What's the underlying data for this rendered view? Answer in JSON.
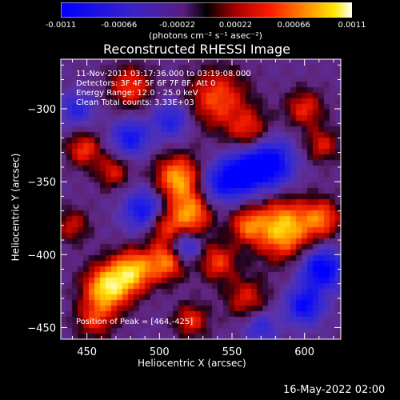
{
  "colorbar": {
    "ticks": [
      "-0.0011",
      "-0.00066",
      "-0.00022",
      "0.00022",
      "0.00066",
      "0.0011"
    ],
    "unit": "(photons cm⁻² s⁻¹ asec⁻²)"
  },
  "title": "Reconstructed RHESSI Image",
  "info": {
    "line1": "11-Nov-2011 03:17:36.000 to 03:19:08.000",
    "line2": "Detectors: 3F 4F 5F 6F 7F 8F, Att 0",
    "line3": "Energy Range: 12.0 - 25.0 keV",
    "line4": "Clean     Total counts: 3.33E+03"
  },
  "peak_label": "Position of Peak = [464,-425]",
  "footer_timestamp": "16-May-2022 02:00",
  "chart_data": {
    "type": "heatmap",
    "title": "Reconstructed RHESSI Image",
    "xlabel": "Heliocentric X (arcsec)",
    "ylabel": "Heliocentric Y (arcsec)",
    "xlim": [
      432,
      625
    ],
    "ylim": [
      -458,
      -266
    ],
    "xticks": [
      450,
      500,
      550,
      600
    ],
    "yticks": [
      -300,
      -350,
      -400,
      -450
    ],
    "colorbar_range": [
      -0.0011,
      0.0011
    ],
    "colormap": "blue-purple-red-yellow-white",
    "peak": [
      464,
      -425
    ],
    "blobs": [
      {
        "x": 464,
        "y": -423,
        "amp": 1.0,
        "r": 11
      },
      {
        "x": 482,
        "y": -411,
        "amp": 0.85,
        "r": 10
      },
      {
        "x": 505,
        "y": -405,
        "amp": 0.7,
        "r": 9
      },
      {
        "x": 513,
        "y": -348,
        "amp": 0.85,
        "r": 11
      },
      {
        "x": 522,
        "y": -372,
        "amp": 0.75,
        "r": 10
      },
      {
        "x": 502,
        "y": -380,
        "amp": 0.55,
        "r": 9
      },
      {
        "x": 585,
        "y": -382,
        "amp": 0.95,
        "r": 14
      },
      {
        "x": 612,
        "y": -375,
        "amp": 0.6,
        "r": 9
      },
      {
        "x": 560,
        "y": -380,
        "amp": 0.55,
        "r": 8
      },
      {
        "x": 540,
        "y": -405,
        "amp": 0.55,
        "r": 9
      },
      {
        "x": 560,
        "y": -430,
        "amp": 0.45,
        "r": 10
      },
      {
        "x": 522,
        "y": -445,
        "amp": 0.5,
        "r": 8
      },
      {
        "x": 540,
        "y": -293,
        "amp": 0.6,
        "r": 14
      },
      {
        "x": 562,
        "y": -315,
        "amp": 0.5,
        "r": 10
      },
      {
        "x": 600,
        "y": -300,
        "amp": 0.5,
        "r": 9
      },
      {
        "x": 480,
        "y": -285,
        "amp": 0.55,
        "r": 10
      },
      {
        "x": 448,
        "y": -328,
        "amp": 0.55,
        "r": 8
      },
      {
        "x": 468,
        "y": -343,
        "amp": 0.45,
        "r": 8
      },
      {
        "x": 612,
        "y": -325,
        "amp": 0.45,
        "r": 8
      },
      {
        "x": 440,
        "y": -380,
        "amp": 0.4,
        "r": 8
      },
      {
        "x": 455,
        "y": -445,
        "amp": 0.45,
        "r": 9
      },
      {
        "x": 575,
        "y": -338,
        "amp": -0.95,
        "r": 12
      },
      {
        "x": 555,
        "y": -345,
        "amp": -0.75,
        "r": 10
      },
      {
        "x": 612,
        "y": -410,
        "amp": -0.9,
        "r": 10
      },
      {
        "x": 600,
        "y": -435,
        "amp": -0.75,
        "r": 9
      },
      {
        "x": 490,
        "y": -370,
        "amp": -0.75,
        "r": 10
      },
      {
        "x": 480,
        "y": -320,
        "amp": -0.65,
        "r": 9
      },
      {
        "x": 518,
        "y": -395,
        "amp": -0.55,
        "r": 7
      },
      {
        "x": 508,
        "y": -308,
        "amp": -0.55,
        "r": 9
      },
      {
        "x": 540,
        "y": -352,
        "amp": -0.5,
        "r": 10
      },
      {
        "x": 443,
        "y": -300,
        "amp": -0.5,
        "r": 8
      },
      {
        "x": 570,
        "y": -450,
        "amp": -0.45,
        "r": 8
      }
    ]
  }
}
